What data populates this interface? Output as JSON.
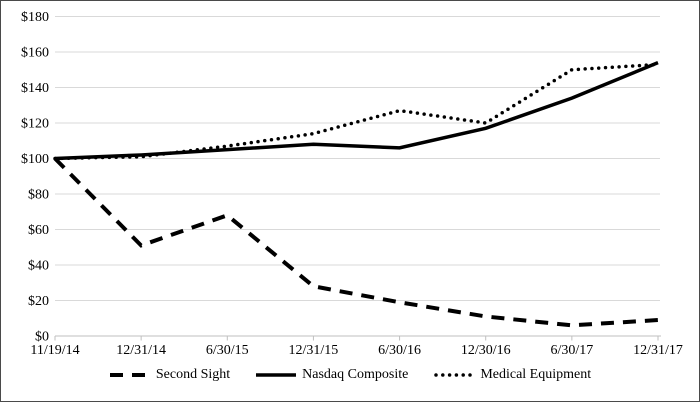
{
  "chart_data": {
    "type": "line",
    "title": "",
    "categories": [
      "11/19/14",
      "12/31/14",
      "6/30/15",
      "12/31/15",
      "6/30/16",
      "12/30/16",
      "6/30/17",
      "12/31/17"
    ],
    "series": [
      {
        "name": "Second Sight",
        "line_style": "dashed",
        "values": [
          100,
          51,
          68,
          28,
          19,
          11,
          6,
          9
        ]
      },
      {
        "name": "Nasdaq Composite",
        "line_style": "solid",
        "values": [
          100,
          102,
          105,
          108,
          106,
          117,
          134,
          154
        ]
      },
      {
        "name": "Medical Equipment",
        "line_style": "dotted",
        "values": [
          100,
          101,
          107,
          114,
          127,
          120,
          150,
          153
        ]
      }
    ],
    "y_axis": {
      "min": 0,
      "max": 180,
      "step": 20,
      "tick_labels": [
        "$0",
        "$20",
        "$40",
        "$60",
        "$80",
        "$100",
        "$120",
        "$140",
        "$160",
        "$180"
      ]
    },
    "x_axis": {
      "tick_labels": [
        "11/19/14",
        "12/31/14",
        "6/30/15",
        "12/31/15",
        "6/30/16",
        "12/30/16",
        "6/30/17",
        "12/31/17"
      ]
    },
    "legend_position": "bottom",
    "grid": true,
    "colors": {
      "line": "#000000",
      "gridline": "#d9d9d9",
      "axis": "#bfbfbf",
      "background": "#ffffff",
      "border": "#4a4a4a"
    }
  }
}
